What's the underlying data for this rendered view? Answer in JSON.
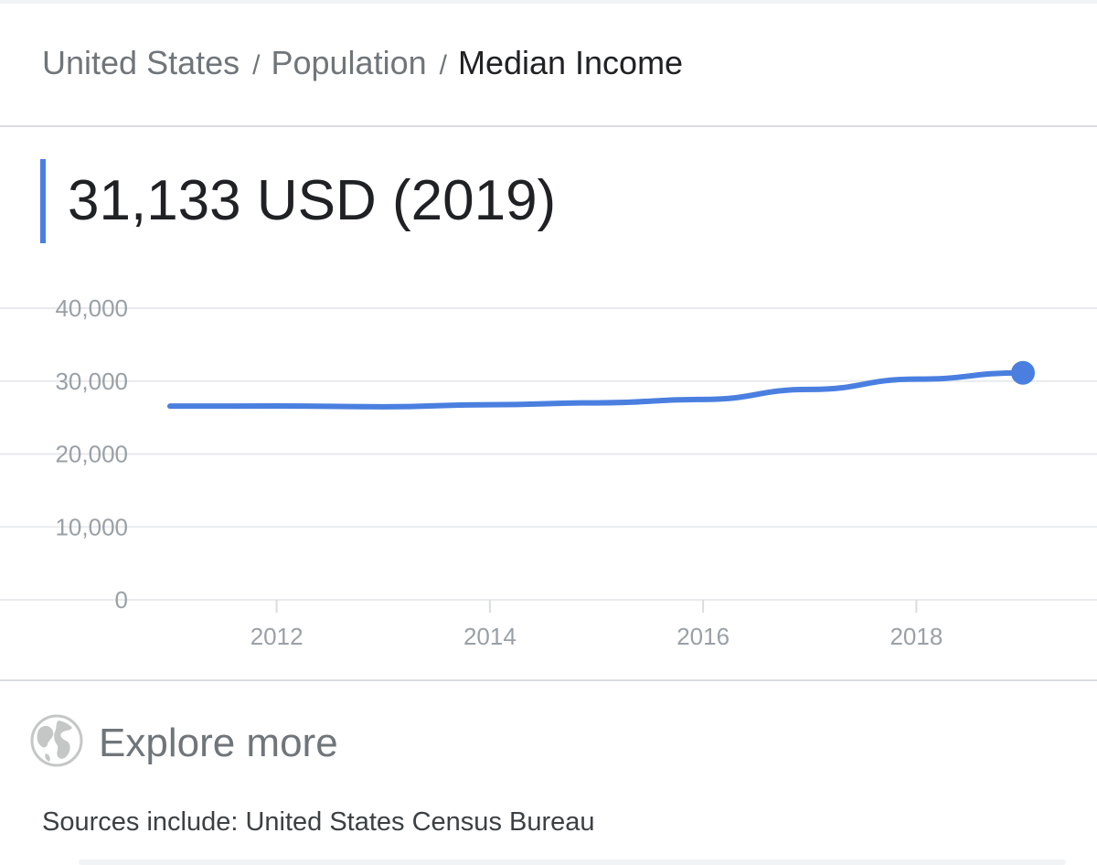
{
  "breadcrumb": {
    "items": [
      "United States",
      "Population",
      "Median Income"
    ],
    "separator": "/"
  },
  "headline": {
    "value": "31,133 USD (2019)",
    "accent_color": "#4a7fe0"
  },
  "chart_data": {
    "type": "line",
    "x": [
      2011,
      2012,
      2013,
      2014,
      2015,
      2016,
      2017,
      2018,
      2019
    ],
    "series": [
      {
        "values": [
          26560,
          26580,
          26480,
          26760,
          27010,
          27480,
          28850,
          30260,
          31133
        ],
        "color": "#4a7fe0"
      }
    ],
    "highlight_last_point": true,
    "xticks": [
      2012,
      2014,
      2016,
      2018
    ],
    "yticks": [
      0,
      10000,
      20000,
      30000,
      40000
    ],
    "ytick_labels": [
      "0",
      "10,000",
      "20,000",
      "30,000",
      "40,000"
    ],
    "xlim": [
      2011,
      2019
    ],
    "ylim": [
      0,
      40000
    ],
    "grid": true,
    "legend": "none"
  },
  "explore": {
    "label": "Explore more",
    "icon": "globe-icon"
  },
  "sources": {
    "text": "Sources include: United States Census Bureau"
  }
}
